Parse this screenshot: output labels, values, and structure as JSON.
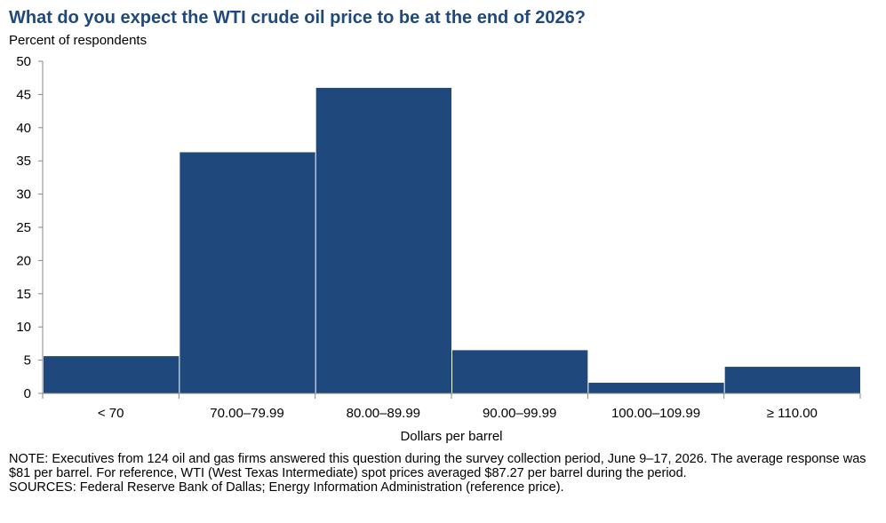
{
  "title": "What do you expect the WTI crude oil price to be at the end of 2026?",
  "notes": {
    "note": "NOTE: Executives from 124 oil and gas firms answered this question during the survey collection period, June 9–17, 2026. The average response was $81 per barrel. For reference, WTI (West Texas Intermediate) spot prices averaged $87.27 per barrel during the period.",
    "sources": "SOURCES: Federal Reserve Bank of Dallas; Energy Information Administration (reference price)."
  },
  "chart_data": {
    "type": "bar",
    "title": "What do you expect the WTI crude oil price to be at the end of 2026?",
    "ylabel": "Percent of respondents",
    "xlabel": "Dollars per barrel",
    "categories": [
      "< 70",
      "70.00–79.99",
      "80.00–89.99",
      "90.00–99.99",
      "100.00–109.99",
      "≥ 110.00"
    ],
    "values": [
      5.6,
      36.3,
      46.0,
      6.5,
      1.6,
      4.0
    ],
    "ylim": [
      0,
      50
    ],
    "yticks": [
      0,
      5,
      10,
      15,
      20,
      25,
      30,
      35,
      40,
      45,
      50
    ],
    "grid": false,
    "legend": "none",
    "bar_color": "#1f497d"
  }
}
